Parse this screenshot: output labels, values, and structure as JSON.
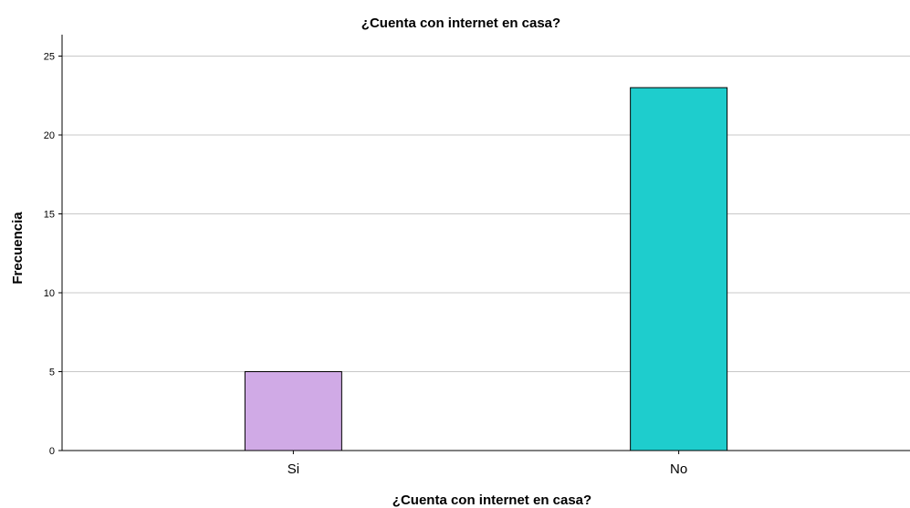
{
  "chart_data": {
    "type": "bar",
    "title": "¿Cuenta con internet en casa?",
    "xlabel": "¿Cuenta con internet en casa?",
    "ylabel": "Frecuencia",
    "categories": [
      "Si",
      "No"
    ],
    "values": [
      5,
      23
    ],
    "colors": [
      "#d0aae6",
      "#1ecdcd"
    ],
    "ylim": [
      0,
      26
    ],
    "yticks": [
      0,
      5,
      10,
      15,
      20,
      25
    ],
    "grid": true
  }
}
